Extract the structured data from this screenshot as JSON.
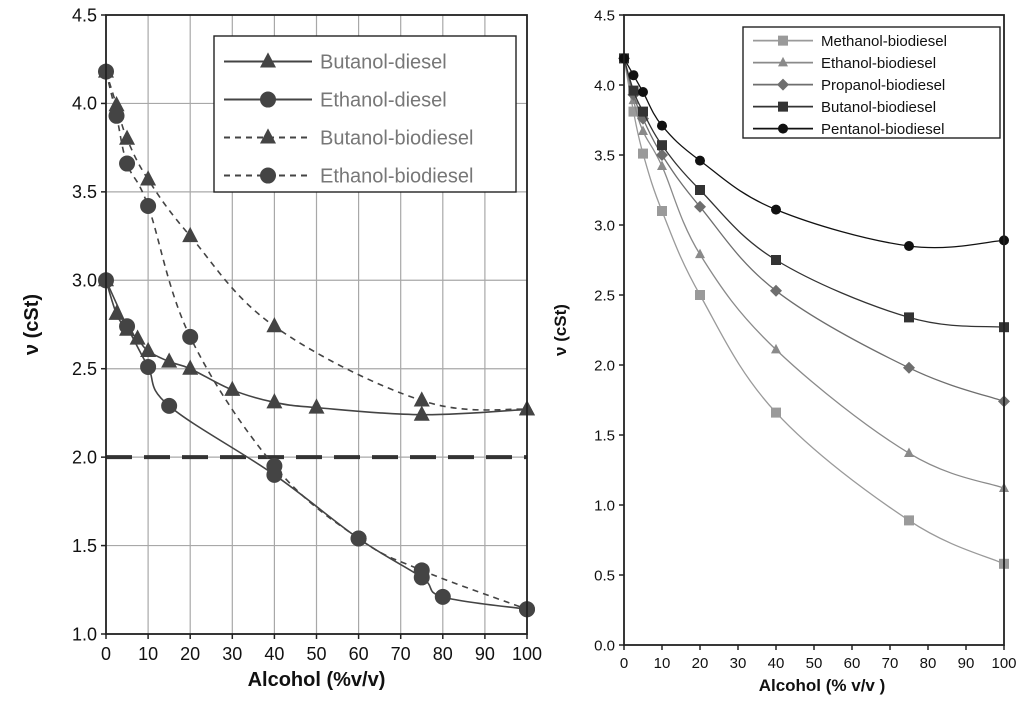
{
  "chart_data": [
    {
      "type": "line",
      "title": "",
      "xlabel": "Alcohol (%v/v)",
      "ylabel": "ν (cSt)",
      "xlim": [
        0,
        100
      ],
      "ylim": [
        1.0,
        4.5
      ],
      "xticks": [
        0,
        10,
        20,
        30,
        40,
        50,
        60,
        70,
        80,
        90,
        100
      ],
      "yticks": [
        1.0,
        1.5,
        2.0,
        2.5,
        3.0,
        3.5,
        4.0,
        4.5
      ],
      "grid": true,
      "legend_position": "top-right",
      "reference_line": {
        "y": 2.0,
        "style": "long-dash"
      },
      "series": [
        {
          "name": "Butanol-diesel",
          "marker": "triangle",
          "dash": "solid",
          "color": "#444444",
          "x": [
            0,
            2.5,
            5,
            7.5,
            10,
            15,
            20,
            30,
            40,
            50,
            75,
            100
          ],
          "y": [
            3.0,
            2.81,
            2.72,
            2.67,
            2.6,
            2.54,
            2.5,
            2.38,
            2.31,
            2.28,
            2.24,
            2.27
          ]
        },
        {
          "name": "Ethanol-diesel",
          "marker": "circle",
          "dash": "solid",
          "color": "#444444",
          "x": [
            0,
            5,
            10,
            15,
            40,
            60,
            75,
            80,
            100
          ],
          "y": [
            3.0,
            2.74,
            2.51,
            2.29,
            1.9,
            1.54,
            1.32,
            1.21,
            1.14
          ]
        },
        {
          "name": "Butanol-biodiesel",
          "marker": "triangle",
          "dash": "dashed",
          "color": "#444444",
          "x": [
            0,
            2.5,
            5,
            10,
            20,
            40,
            75,
            100
          ],
          "y": [
            4.18,
            3.99,
            3.8,
            3.57,
            3.25,
            2.74,
            2.32,
            2.27
          ]
        },
        {
          "name": "Ethanol-biodiesel",
          "marker": "circle",
          "dash": "dashed",
          "color": "#444444",
          "x": [
            0,
            2.5,
            5,
            10,
            20,
            40,
            60,
            75,
            100
          ],
          "y": [
            4.18,
            3.93,
            3.66,
            3.42,
            2.68,
            1.95,
            1.54,
            1.36,
            1.14
          ]
        }
      ]
    },
    {
      "type": "line",
      "title": "",
      "xlabel": "Alcohol (% v/v )",
      "ylabel": "ν (cSt)",
      "xlim": [
        0,
        100
      ],
      "ylim": [
        0.0,
        4.5
      ],
      "xticks": [
        0,
        10,
        20,
        30,
        40,
        50,
        60,
        70,
        80,
        90,
        100
      ],
      "yticks": [
        "0.0",
        "0.5",
        "1.0",
        "1.5",
        "2.0",
        "2.5",
        "3.0",
        "3.5",
        "4.0",
        "4.5"
      ],
      "grid": false,
      "legend_position": "top-right",
      "series": [
        {
          "name": "Methanol-biodiesel",
          "marker": "square",
          "color": "#9a9a9a",
          "x": [
            0,
            2.5,
            5,
            10,
            20,
            40,
            75,
            100
          ],
          "y": [
            4.19,
            3.81,
            3.51,
            3.1,
            2.5,
            1.66,
            0.89,
            0.58
          ]
        },
        {
          "name": "Ethanol-biodiesel",
          "marker": "triangle",
          "color": "#8a8a8a",
          "x": [
            0,
            2.5,
            5,
            10,
            20,
            40,
            75,
            100
          ],
          "y": [
            4.19,
            3.89,
            3.67,
            3.42,
            2.79,
            2.11,
            1.37,
            1.12
          ]
        },
        {
          "name": "Propanol-biodiesel",
          "marker": "diamond",
          "color": "#6e6e6e",
          "x": [
            0,
            2.5,
            5,
            10,
            20,
            40,
            75,
            100
          ],
          "y": [
            4.19,
            3.93,
            3.76,
            3.5,
            3.13,
            2.53,
            1.98,
            1.74
          ]
        },
        {
          "name": "Butanol-biodiesel",
          "marker": "square",
          "color": "#333333",
          "x": [
            0,
            2.5,
            5,
            10,
            20,
            40,
            75,
            100
          ],
          "y": [
            4.19,
            3.96,
            3.81,
            3.57,
            3.25,
            2.75,
            2.34,
            2.27
          ]
        },
        {
          "name": "Pentanol-biodiesel",
          "marker": "circle",
          "color": "#111111",
          "x": [
            0,
            2.5,
            5,
            10,
            20,
            40,
            75,
            100
          ],
          "y": [
            4.19,
            4.07,
            3.95,
            3.71,
            3.46,
            3.11,
            2.85,
            2.89
          ]
        }
      ]
    }
  ]
}
